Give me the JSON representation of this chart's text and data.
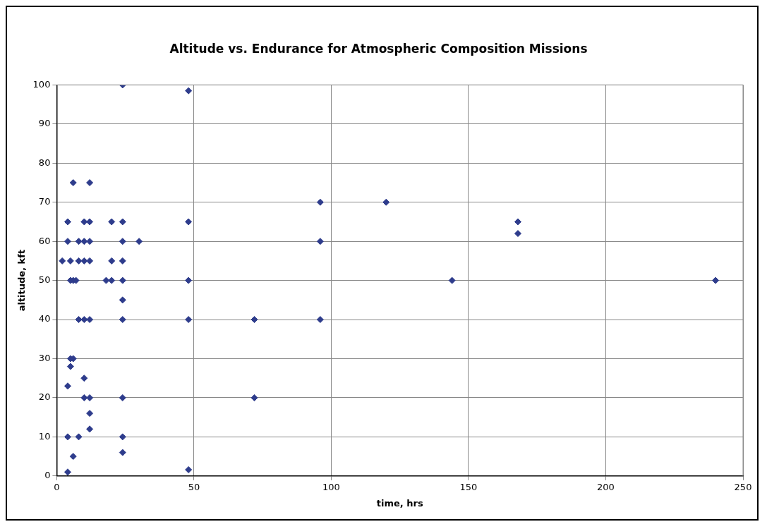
{
  "chart_data": {
    "type": "scatter",
    "title": "Altitude vs. Endurance for Atmospheric Composition Missions",
    "xlabel": "time, hrs",
    "ylabel": "altitude, kft",
    "xlim": [
      0,
      250
    ],
    "xticks": [
      0,
      50,
      100,
      150,
      200,
      250
    ],
    "ylim": [
      0,
      100
    ],
    "yticks": [
      0,
      10,
      20,
      30,
      40,
      50,
      60,
      70,
      80,
      90,
      100
    ],
    "grid": true,
    "legend": false,
    "marker": "diamond",
    "series": [
      {
        "color": "#2e3c8c",
        "x": [
          6,
          12,
          4,
          10,
          12,
          20,
          24,
          48,
          4,
          8,
          10,
          12,
          24,
          30,
          2,
          5,
          8,
          10,
          12,
          20,
          24,
          5,
          6,
          7,
          18,
          20,
          24,
          48,
          24,
          8,
          10,
          12,
          24,
          48,
          5,
          6,
          5,
          10,
          4,
          10,
          12,
          24,
          12,
          12,
          4,
          8,
          24,
          24,
          6,
          4,
          48,
          24,
          48,
          72,
          96,
          72,
          96,
          120,
          96,
          144,
          240,
          168,
          168
        ],
        "values": [
          75,
          75,
          65,
          65,
          65,
          65,
          65,
          65,
          60,
          60,
          60,
          60,
          60,
          60,
          55,
          55,
          55,
          55,
          55,
          55,
          55,
          50,
          50,
          50,
          50,
          50,
          50,
          50,
          45,
          40,
          40,
          40,
          40,
          40,
          30,
          30,
          28,
          25,
          23,
          20,
          20,
          20,
          16,
          12,
          10,
          10,
          10,
          6,
          5,
          1,
          1.6,
          100,
          98.5,
          40,
          40,
          20,
          70,
          70,
          60,
          50,
          50,
          65,
          62
        ]
      }
    ]
  }
}
